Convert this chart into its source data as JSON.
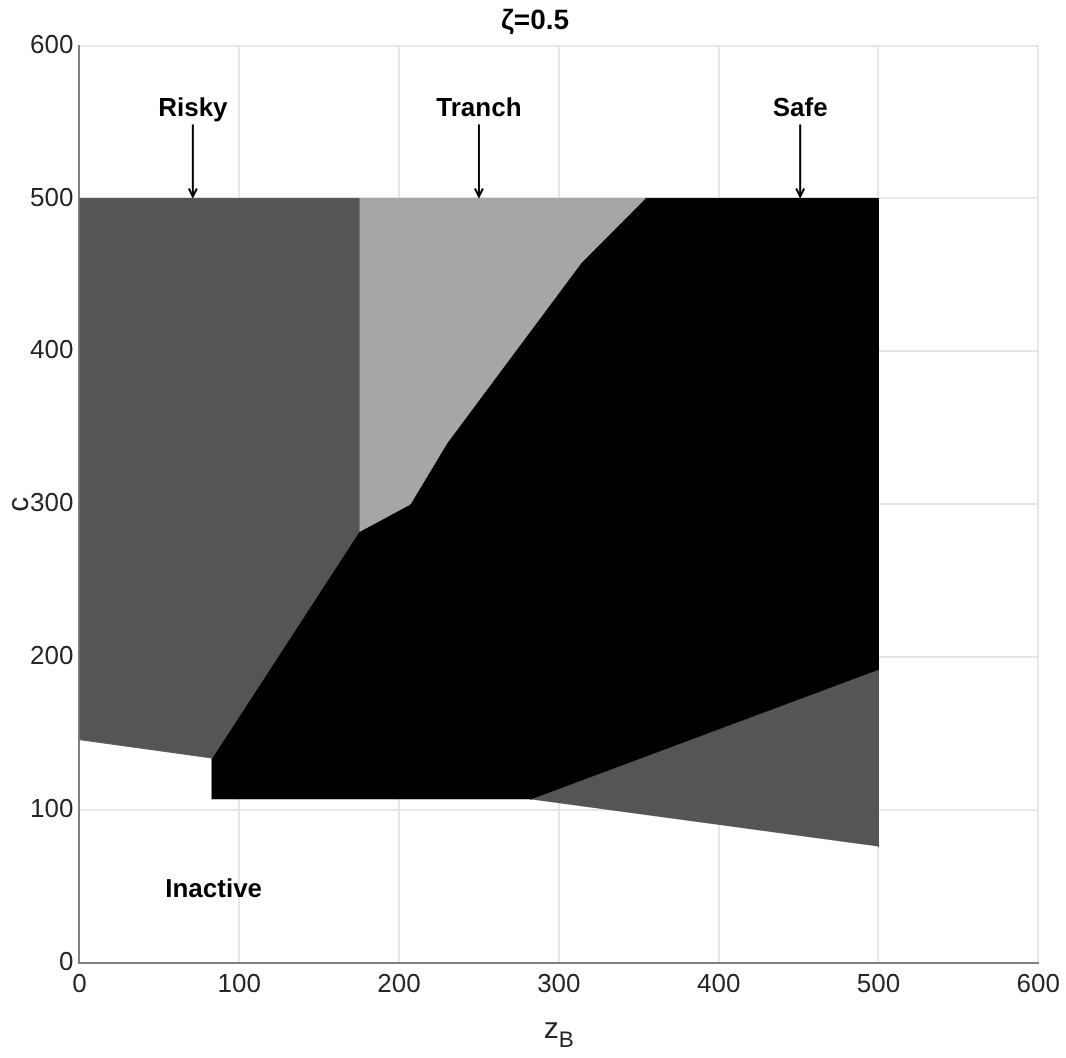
{
  "chart_data": {
    "type": "area",
    "title": "ζ=0.5",
    "xlabel": "z$_{B}$",
    "ylabel": "c",
    "xlim": [
      0,
      600
    ],
    "ylim": [
      0,
      600
    ],
    "xticks": [
      0,
      100,
      200,
      300,
      400,
      500,
      600
    ],
    "yticks": [
      0,
      100,
      200,
      300,
      400,
      500,
      600
    ],
    "grid": true,
    "legend": false,
    "series": [
      {
        "color": "#555555",
        "x": [
          0,
          83,
          175,
          175,
          0
        ],
        "values": [
          146,
          134,
          282,
          500,
          500
        ]
      },
      {
        "color": "#a6a6a6",
        "x": [
          175,
          207,
          230,
          314,
          354,
          175
        ],
        "values": [
          282,
          300,
          340,
          458,
          500,
          500
        ]
      },
      {
        "color": "#000000",
        "x": [
          83,
          83,
          175,
          207,
          230,
          314,
          354,
          500,
          500,
          282
        ],
        "values": [
          107,
          134,
          282,
          300,
          340,
          458,
          500,
          500,
          192,
          107
        ]
      },
      {
        "color": "#555555",
        "x": [
          282,
          500,
          500
        ],
        "values": [
          107,
          192,
          76
        ]
      }
    ],
    "annotations": [
      {
        "text": "Risky",
        "x": 71,
        "y": 500
      },
      {
        "text": "Tranch",
        "x": 250,
        "y": 500
      },
      {
        "text": "Safe",
        "x": 451,
        "y": 500
      },
      "Inactive"
    ]
  }
}
